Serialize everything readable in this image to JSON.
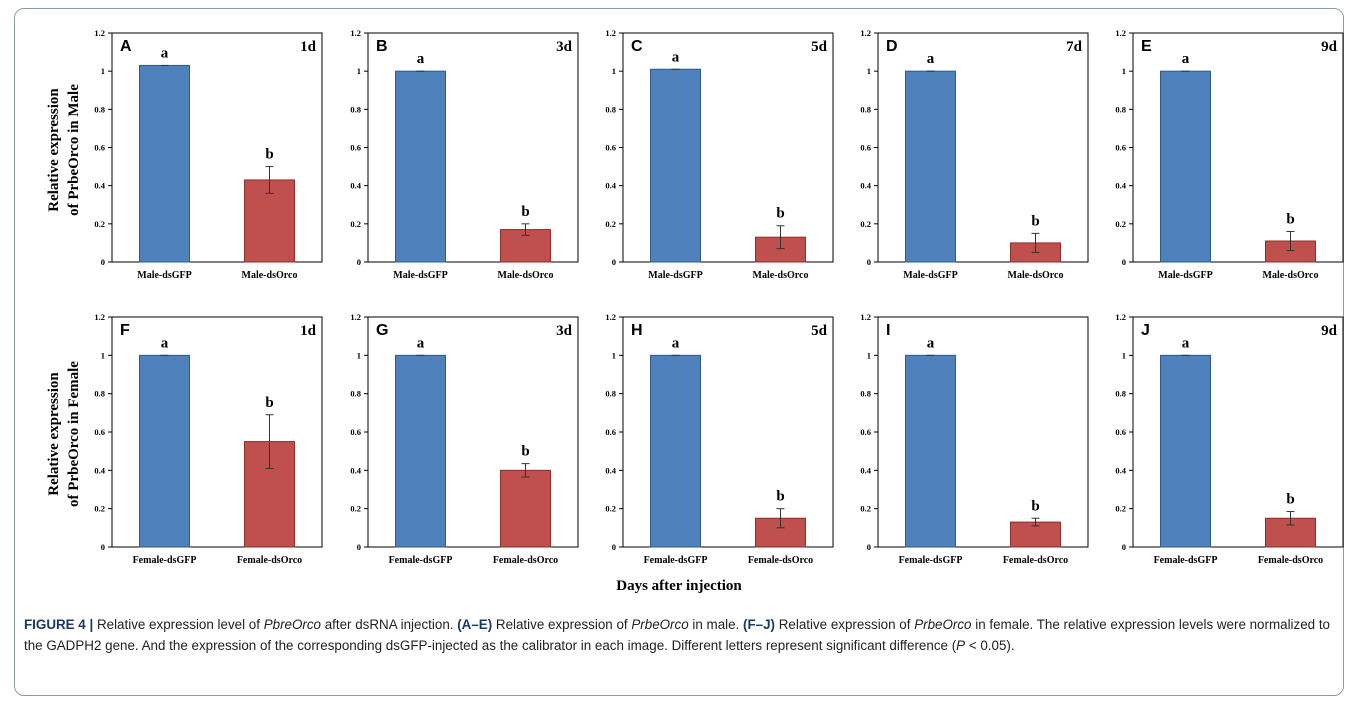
{
  "colors": {
    "dsGFP": "#4f81bd",
    "dsOrco": "#c0504d",
    "dsGFP_stroke": "#2f5a8a",
    "dsOrco_stroke": "#8c2e2b"
  },
  "y_titles": {
    "male": [
      "Relative expression",
      "of PrbeOrco in Male"
    ],
    "female": [
      "Relative expression",
      "of PrbeOrco in Female"
    ]
  },
  "x_caption": "Days after injection",
  "caption": {
    "figure_label": "FIGURE 4 |",
    "title_pre": " Relative expression level of ",
    "title_gene": "PbreOrco",
    "title_post": " after dsRNA injection. ",
    "male_range": "(A–E)",
    "male_text_pre": " Relative expression of ",
    "gene": "PrbeOrco",
    "male_text_post": " in male. ",
    "female_range": "(F–J)",
    "female_text_pre": " Relative expression of ",
    "female_text_post": " in female. The relative expression levels were normalized to the GADPH2 gene. And the expression of the corresponding dsGFP-injected as the calibrator in each image. Different letters represent significant difference (",
    "p_symbol": "P",
    "p_text": " < 0.05)."
  },
  "chart_data": [
    {
      "type": "bar",
      "panel": "A",
      "day": "1d",
      "categories": [
        "Male-dsGFP",
        "Male-dsOrco"
      ],
      "values": [
        1.03,
        0.43
      ],
      "errors": [
        0,
        0.07
      ],
      "letters": [
        "a",
        "b"
      ],
      "ylim": [
        0,
        1.2
      ],
      "yticks": [
        "0",
        "0.2",
        "0.4",
        "0.6",
        "0.8",
        "1",
        "1.2"
      ]
    },
    {
      "type": "bar",
      "panel": "B",
      "day": "3d",
      "categories": [
        "Male-dsGFP",
        "Male-dsOrco"
      ],
      "values": [
        1.0,
        0.17
      ],
      "errors": [
        0,
        0.03
      ],
      "letters": [
        "a",
        "b"
      ],
      "ylim": [
        0,
        1.2
      ],
      "yticks": [
        "0",
        "0.2",
        "0.4",
        "0.6",
        "0.8",
        "1",
        "1.2"
      ]
    },
    {
      "type": "bar",
      "panel": "C",
      "day": "5d",
      "categories": [
        "Male-dsGFP",
        "Male-dsOrco"
      ],
      "values": [
        1.01,
        0.13
      ],
      "errors": [
        0,
        0.06
      ],
      "letters": [
        "a",
        "b"
      ],
      "ylim": [
        0,
        1.2
      ],
      "yticks": [
        "0",
        "0.2",
        "0.4",
        "0.6",
        "0.8",
        "1",
        "1.2"
      ]
    },
    {
      "type": "bar",
      "panel": "D",
      "day": "7d",
      "categories": [
        "Male-dsGFP",
        "Male-dsOrco"
      ],
      "values": [
        1.0,
        0.1
      ],
      "errors": [
        0,
        0.05
      ],
      "letters": [
        "a",
        "b"
      ],
      "ylim": [
        0,
        1.2
      ],
      "yticks": [
        "0",
        "0.2",
        "0.4",
        "0.6",
        "0.8",
        "1",
        "1.2"
      ]
    },
    {
      "type": "bar",
      "panel": "E",
      "day": "9d",
      "categories": [
        "Male-dsGFP",
        "Male-dsOrco"
      ],
      "values": [
        1.0,
        0.11
      ],
      "errors": [
        0,
        0.05
      ],
      "letters": [
        "a",
        "b"
      ],
      "ylim": [
        0,
        1.2
      ],
      "yticks": [
        "0",
        "0.2",
        "0.4",
        "0.6",
        "0.8",
        "1",
        "1.2"
      ]
    },
    {
      "type": "bar",
      "panel": "F",
      "day": "1d",
      "categories": [
        "Female-dsGFP",
        "Female-dsOrco"
      ],
      "values": [
        1.0,
        0.55
      ],
      "errors": [
        0,
        0.14
      ],
      "letters": [
        "a",
        "b"
      ],
      "ylim": [
        0,
        1.2
      ],
      "yticks": [
        "0",
        "0.2",
        "0.4",
        "0.6",
        "0.8",
        "1",
        "1.2"
      ]
    },
    {
      "type": "bar",
      "panel": "G",
      "day": "3d",
      "categories": [
        "Female-dsGFP",
        "Female-dsOrco"
      ],
      "values": [
        1.0,
        0.4
      ],
      "errors": [
        0,
        0.035
      ],
      "letters": [
        "a",
        "b"
      ],
      "ylim": [
        0,
        1.2
      ],
      "yticks": [
        "0",
        "0.2",
        "0.4",
        "0.6",
        "0.8",
        "1",
        "1.2"
      ]
    },
    {
      "type": "bar",
      "panel": "H",
      "day": "5d",
      "categories": [
        "Female-dsGFP",
        "Female-dsOrco"
      ],
      "values": [
        1.0,
        0.15
      ],
      "errors": [
        0,
        0.05
      ],
      "letters": [
        "a",
        "b"
      ],
      "ylim": [
        0,
        1.2
      ],
      "yticks": [
        "0",
        "0.2",
        "0.4",
        "0.6",
        "0.8",
        "1",
        "1.2"
      ]
    },
    {
      "type": "bar",
      "panel": "I",
      "day": "",
      "categories": [
        "Female-dsGFP",
        "Female-dsOrco"
      ],
      "values": [
        1.0,
        0.13
      ],
      "errors": [
        0,
        0.02
      ],
      "letters": [
        "a",
        "b"
      ],
      "ylim": [
        0,
        1.2
      ],
      "yticks": [
        "0",
        "0.2",
        "0.4",
        "0.6",
        "0.8",
        "1",
        "1.2"
      ]
    },
    {
      "type": "bar",
      "panel": "J",
      "day": "9d",
      "categories": [
        "Female-dsGFP",
        "Female-dsOrco"
      ],
      "values": [
        1.0,
        0.15
      ],
      "errors": [
        0,
        0.035
      ],
      "letters": [
        "a",
        "b"
      ],
      "ylim": [
        0,
        1.2
      ],
      "yticks": [
        "0",
        "0.2",
        "0.4",
        "0.6",
        "0.8",
        "1",
        "1.2"
      ]
    }
  ]
}
